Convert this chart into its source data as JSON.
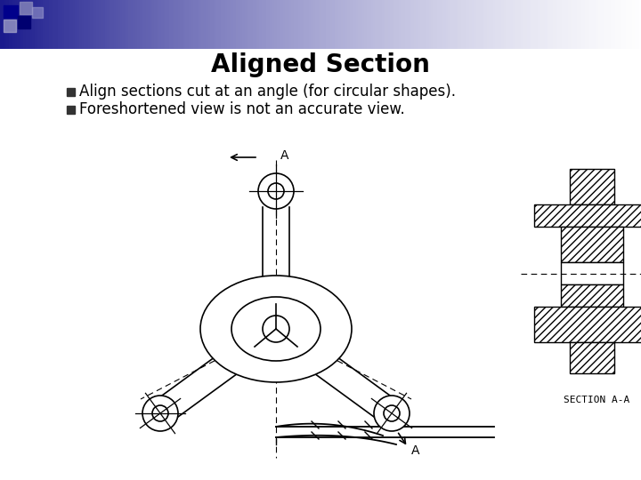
{
  "title": "Aligned Section",
  "bullet1": "Align sections cut at an angle (for circular shapes).",
  "bullet2": "Foreshortened view is not an accurate view.",
  "bg_color": "#ffffff",
  "title_color": "#000000",
  "text_color": "#000000",
  "line_color": "#000000",
  "header_colors": [
    "#1a1a7e",
    "#4444aa",
    "#aaaacc",
    "#ccccdd",
    "#ffffff"
  ],
  "sq_colors": [
    "#00008b",
    "#8888bb",
    "#000080",
    "#9999cc"
  ]
}
